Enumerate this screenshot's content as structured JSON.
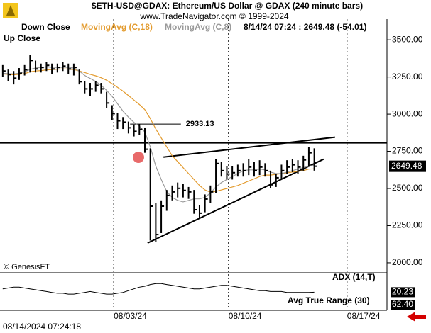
{
  "chart_data": {
    "type": "ohlc",
    "title": "$ETH-USD@GDAX: Ethereum/US Dollar @ GDAX  (240 minute bars)",
    "subtitle": "www.TradeNavigator.com © 1999-2024",
    "legend_items": [
      "Down Close",
      "Up Close"
    ],
    "status": "8/14/24 07:24 : 2649.48 (-54.01)",
    "watermark": "© GenesisFT",
    "footer": "08/14/2024 07:24:18",
    "color": "#000000",
    "high": [
      3330,
      3300,
      3290,
      3310,
      3330,
      3400,
      3360,
      3340,
      3350,
      3340,
      3340,
      3350,
      3340,
      3340,
      3300,
      3220,
      3210,
      3220,
      3210,
      3150,
      3060,
      3010,
      2980,
      2950,
      2930,
      2933,
      2910,
      2770,
      2400,
      2420,
      2490,
      2520,
      2540,
      2530,
      2510,
      2490,
      2390,
      2460,
      2520,
      2700,
      2680,
      2650,
      2650,
      2660,
      2670,
      2700,
      2680,
      2690,
      2670,
      2620,
      2600,
      2660,
      2690,
      2700,
      2690,
      2720,
      2780,
      2770
    ],
    "low": [
      3250,
      3220,
      3200,
      3230,
      3260,
      3280,
      3280,
      3280,
      3290,
      3270,
      3280,
      3290,
      3270,
      3260,
      3200,
      3140,
      3120,
      3150,
      3140,
      3040,
      2960,
      2900,
      2900,
      2870,
      2850,
      2860,
      2740,
      2150,
      2140,
      2200,
      2350,
      2420,
      2440,
      2440,
      2430,
      2330,
      2300,
      2340,
      2400,
      2470,
      2580,
      2560,
      2560,
      2580,
      2580,
      2590,
      2580,
      2590,
      2580,
      2500,
      2510,
      2560,
      2600,
      2610,
      2600,
      2620,
      2650,
      2620
    ],
    "close": [
      3290,
      3266,
      3242,
      3275,
      3299,
      3361,
      3304,
      3314,
      3328,
      3304,
      3314,
      3323,
      3304,
      3314,
      3218,
      3170,
      3170,
      3194,
      3170,
      3075,
      3003,
      2955,
      2946,
      2908,
      2884,
      2898,
      2764,
      2381,
      2190,
      2381,
      2453,
      2477,
      2501,
      2487,
      2477,
      2357,
      2334,
      2429,
      2477,
      2668,
      2620,
      2597,
      2606,
      2620,
      2620,
      2644,
      2620,
      2644,
      2620,
      2525,
      2572,
      2620,
      2644,
      2659,
      2644,
      2692,
      2740,
      2649.48
    ],
    "series": [
      {
        "name": "MovingAvg (C,18)",
        "color": "#e39b2e",
        "values": [
          3270,
          3268,
          3265,
          3268,
          3272,
          3285,
          3290,
          3293,
          3298,
          3300,
          3302,
          3304,
          3303,
          3300,
          3290,
          3280,
          3268,
          3258,
          3245,
          3228,
          3205,
          3180,
          3155,
          3125,
          3095,
          3065,
          3030,
          2970,
          2900,
          2840,
          2780,
          2720,
          2680,
          2640,
          2600,
          2560,
          2520,
          2490,
          2475,
          2480,
          2490,
          2500,
          2510,
          2520,
          2535,
          2550,
          2565,
          2580,
          2590,
          2590,
          2595,
          2600,
          2605,
          2610,
          2615,
          2620,
          2630,
          2632
        ]
      },
      {
        "name": "MovingAvg (C,8)",
        "color": "#9a9a9a",
        "values": [
          3275,
          3272,
          3270,
          3275,
          3285,
          3300,
          3310,
          3315,
          3318,
          3315,
          3314,
          3315,
          3315,
          3310,
          3290,
          3260,
          3240,
          3220,
          3195,
          3160,
          3120,
          3070,
          3020,
          2980,
          2945,
          2920,
          2880,
          2780,
          2650,
          2560,
          2480,
          2440,
          2420,
          2410,
          2420,
          2430,
          2430,
          2440,
          2470,
          2510,
          2540,
          2560,
          2580,
          2600,
          2620,
          2625,
          2625,
          2630,
          2625,
          2610,
          2600,
          2600,
          2610,
          2620,
          2630,
          2640,
          2650,
          2655
        ]
      }
    ],
    "xlim": [
      0,
      70.8
    ],
    "xticks": [
      {
        "value": 20.8,
        "label": "08/03/24"
      },
      {
        "value": 41.8,
        "label": "08/10/24"
      },
      {
        "value": 63.5,
        "label": "08/17/24"
      }
    ],
    "ylim": [
      1933,
      3639
    ],
    "yticks": [
      {
        "value": 2000,
        "label": "2000.00"
      },
      {
        "value": 2250,
        "label": "2250.00"
      },
      {
        "value": 2500,
        "label": "2500.00"
      },
      {
        "value": 2750,
        "label": "2750.00"
      },
      {
        "value": 3000,
        "label": "3000.00"
      },
      {
        "value": 3250,
        "label": "3250.00"
      },
      {
        "value": 3500,
        "label": "3500.00"
      }
    ],
    "trendlines": [
      {
        "x": [
          0,
          70.8
        ],
        "y": [
          2807,
          2807
        ]
      },
      {
        "x": [
          29.9,
          61.3
        ],
        "y": [
          2711,
          2845
        ]
      },
      {
        "x": [
          27.0,
          59.2
        ],
        "y": [
          2133,
          2697
        ]
      }
    ],
    "level_annotation": {
      "value": 2933.13,
      "x": [
        23.8,
        33.1
      ]
    },
    "adx": {
      "title": "ADX (14,T)",
      "color": "#000000",
      "ylim": [
        10,
        40
      ],
      "values": [
        24,
        25,
        26,
        26,
        25,
        24,
        23,
        22,
        21,
        20,
        19,
        19,
        18,
        18,
        19,
        20,
        21,
        20,
        19,
        18,
        18,
        19,
        20,
        22,
        24,
        26,
        27,
        29,
        30,
        30,
        29,
        28,
        27,
        26,
        25,
        24,
        24,
        25,
        26,
        27,
        28,
        28,
        27,
        26,
        25,
        24,
        23,
        22,
        22,
        21,
        21,
        21,
        20,
        20,
        20,
        20,
        20,
        20.23
      ]
    },
    "atr": {
      "title": "Avg True Range (30)",
      "last": {
        "value": 62.4,
        "label": "62.40"
      }
    }
  }
}
